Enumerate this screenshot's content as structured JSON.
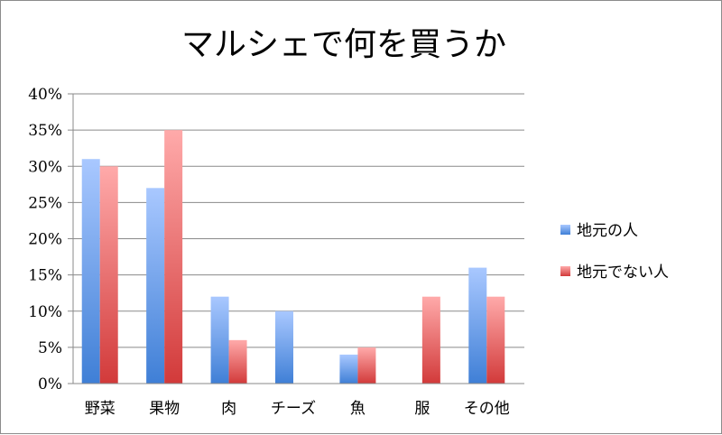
{
  "chart_data": {
    "type": "bar",
    "title": "マルシェで何を買うか",
    "categories": [
      "野菜",
      "果物",
      "肉",
      "チーズ",
      "魚",
      "服",
      "その他"
    ],
    "series": [
      {
        "name": "地元の人",
        "values": [
          31,
          27,
          12,
          10,
          4,
          0,
          16
        ],
        "color_top": "#a9c8ff",
        "color_bottom": "#3f7fd6"
      },
      {
        "name": "地元でない人",
        "values": [
          30,
          35,
          6,
          0,
          5,
          12,
          12
        ],
        "color_top": "#ffaaaa",
        "color_bottom": "#d23a3a"
      }
    ],
    "yticks": [
      "0%",
      "5%",
      "10%",
      "15%",
      "20%",
      "25%",
      "30%",
      "35%",
      "40%"
    ],
    "ylim": [
      0,
      40
    ],
    "grid": true,
    "legend_position": "right"
  }
}
